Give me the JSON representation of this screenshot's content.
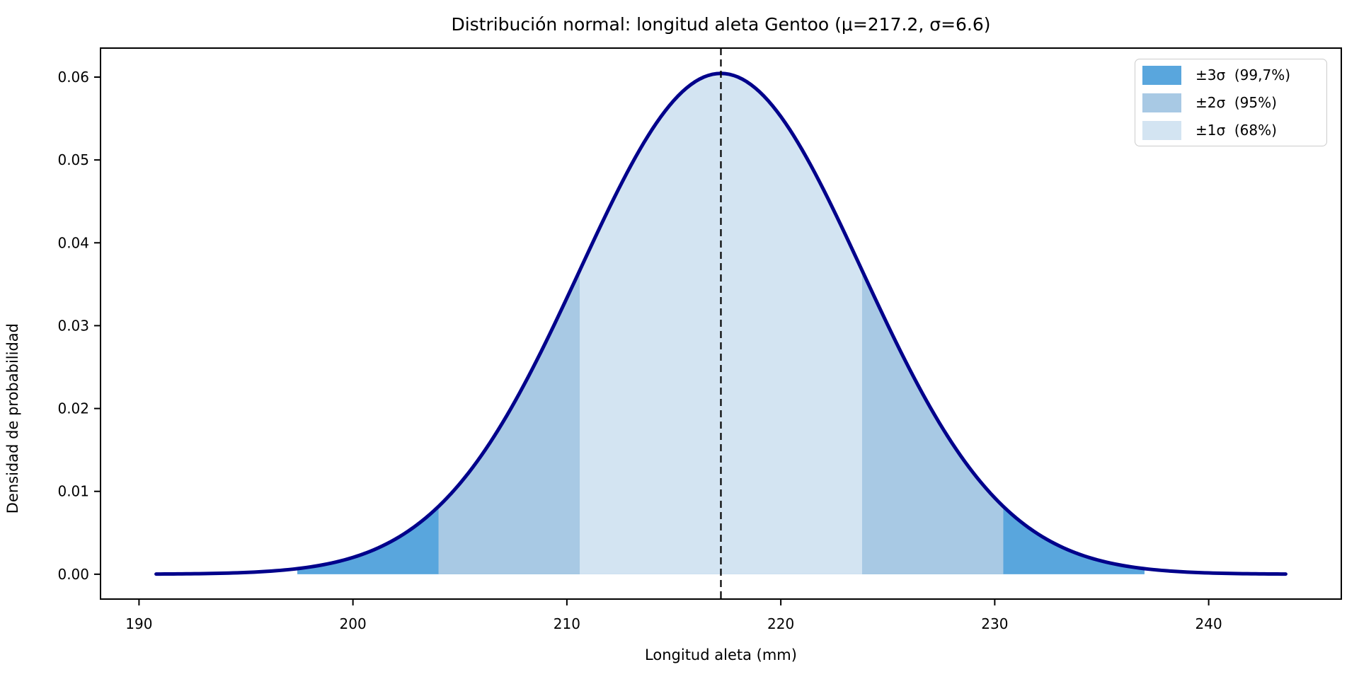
{
  "chart_data": {
    "type": "area",
    "title": "Distribución normal: longitud aleta Gentoo (μ=217.2, σ=6.6)",
    "xlabel": "Longitud aleta (mm)",
    "ylabel": "Densidad de probabilidad",
    "mu": 217.2,
    "sigma": 6.6,
    "peak_density": 0.0604,
    "curve_x_range": [
      190.8,
      243.6
    ],
    "xlim": [
      188.2,
      246.2
    ],
    "ylim": [
      -0.003,
      0.0635
    ],
    "xticks": [
      190,
      200,
      210,
      220,
      230,
      240
    ],
    "yticks": [
      {
        "value": 0.0,
        "label": "0.00"
      },
      {
        "value": 0.01,
        "label": "0.01"
      },
      {
        "value": 0.02,
        "label": "0.02"
      },
      {
        "value": 0.03,
        "label": "0.03"
      },
      {
        "value": 0.04,
        "label": "0.04"
      },
      {
        "value": 0.05,
        "label": "0.05"
      },
      {
        "value": 0.06,
        "label": "0.06"
      }
    ],
    "bands": [
      {
        "name": "sigma3",
        "multiplier": 3,
        "x_from": 197.4,
        "x_to": 237.0,
        "coverage": "99,7%",
        "color": "#59A6DD",
        "label": "±3σ  (99,7%)"
      },
      {
        "name": "sigma2",
        "multiplier": 2,
        "x_from": 204.0,
        "x_to": 230.4,
        "coverage": "95%",
        "color": "#A8C9E4",
        "label": "±2σ  (95%)"
      },
      {
        "name": "sigma1",
        "multiplier": 1,
        "x_from": 210.6,
        "x_to": 223.8,
        "coverage": "68%",
        "color": "#D3E4F2",
        "label": "±1σ  (68%)"
      }
    ],
    "mean_line": {
      "x": 217.2,
      "style": "dashed",
      "color": "#000000"
    },
    "curve_color": "#00008B",
    "axis_color": "#000000",
    "legend_position": "upper right",
    "grid": false
  }
}
